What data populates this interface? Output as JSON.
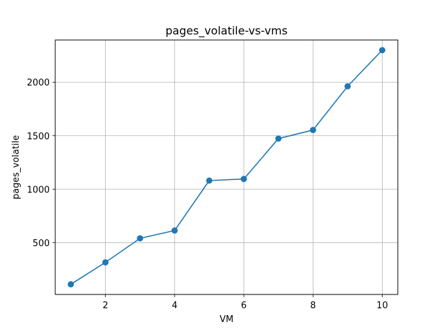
{
  "chart_data": {
    "type": "line",
    "title": "pages_volatile-vs-vms",
    "xlabel": "VM",
    "ylabel": "pages_volatile",
    "x": [
      1,
      2,
      3,
      4,
      5,
      6,
      7,
      8,
      9,
      10
    ],
    "series": [
      {
        "values": [
          110,
          315,
          540,
          613,
          1080,
          1095,
          1473,
          1553,
          1962,
          2300
        ]
      }
    ],
    "xlim": [
      0.55,
      10.45
    ],
    "ylim": [
      15,
      2395
    ],
    "x_ticks": [
      2,
      4,
      6,
      8,
      10
    ],
    "x_tick_labels": [
      "2",
      "4",
      "6",
      "8",
      "10"
    ],
    "y_ticks": [
      500,
      1000,
      1500,
      2000
    ],
    "y_tick_labels": [
      "500",
      "1000",
      "1500",
      "2000"
    ],
    "grid": true,
    "marker": "circle",
    "colors": {
      "line": "#1f77b4",
      "grid": "#b0b0b0",
      "axes": "#000000"
    }
  }
}
